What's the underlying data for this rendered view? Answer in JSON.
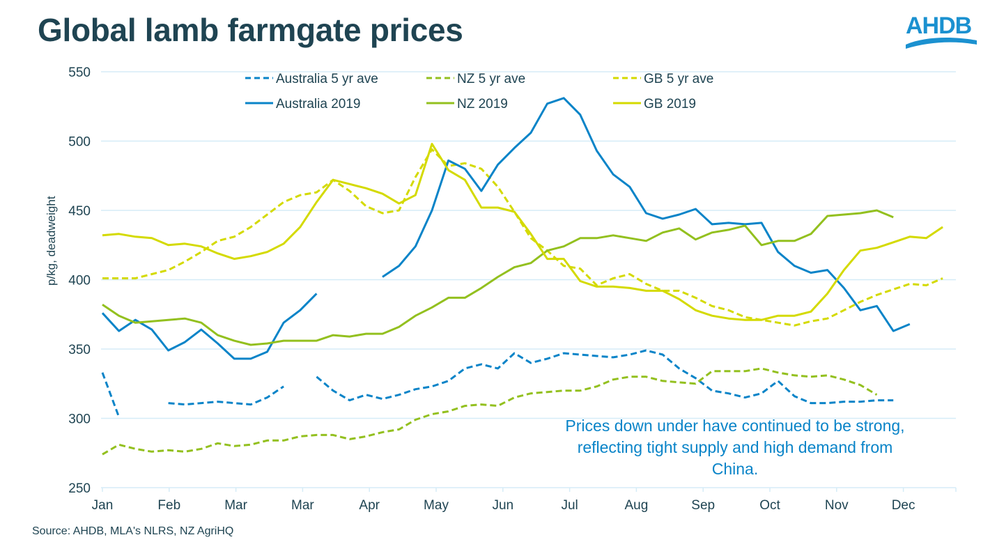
{
  "header": {
    "title": "Global lamb farmgate prices",
    "logo_text": "AHDB"
  },
  "source": "Source: AHDB, MLA's NLRS, NZ AgriHQ",
  "annotation": "Prices down under have continued to be strong, reflecting tight supply and high demand from China.",
  "colors": {
    "australia": "#0a84c8",
    "nz": "#93c01f",
    "gb": "#d4da00",
    "grid": "#d5ecf7",
    "text": "#1f4452"
  },
  "chart_data": {
    "type": "line",
    "title": "Global lamb farmgate prices",
    "xlabel": "",
    "ylabel": "p/kg, deadweight",
    "ylim": [
      250,
      550
    ],
    "yticks": [
      250,
      300,
      350,
      400,
      450,
      500,
      550
    ],
    "x_tick_labels": [
      "Jan",
      "Feb",
      "Mar",
      "Mar",
      "Apr",
      "May",
      "Jun",
      "Jul",
      "Aug",
      "Sep",
      "Oct",
      "Nov",
      "Dec"
    ],
    "x_unit": "week index (0-51)",
    "grid": true,
    "legend": "top-center",
    "series": [
      {
        "name": "Australia 5 yr ave",
        "style": "dashed",
        "color_key": "australia",
        "values": [
          333,
          301,
          null,
          null,
          311,
          310,
          311,
          312,
          311,
          310,
          315,
          323,
          null,
          330,
          320,
          313,
          317,
          314,
          317,
          321,
          323,
          327,
          336,
          339,
          336,
          347,
          340,
          343,
          347,
          346,
          345,
          344,
          346,
          349,
          346,
          336,
          329,
          320,
          318,
          315,
          318,
          327,
          316,
          311,
          311,
          312,
          312,
          313,
          313,
          null,
          null,
          null
        ]
      },
      {
        "name": "NZ 5 yr ave",
        "style": "dashed",
        "color_key": "nz",
        "values": [
          274,
          281,
          278,
          276,
          277,
          276,
          278,
          282,
          280,
          281,
          284,
          284,
          287,
          288,
          288,
          285,
          287,
          290,
          292,
          299,
          303,
          305,
          309,
          310,
          309,
          315,
          318,
          319,
          320,
          320,
          323,
          328,
          330,
          330,
          327,
          326,
          325,
          334,
          334,
          334,
          336,
          333,
          331,
          330,
          331,
          328,
          324,
          317,
          null,
          null,
          null,
          null
        ]
      },
      {
        "name": "GB 5 yr ave",
        "style": "dashed",
        "color_key": "gb",
        "values": [
          401,
          401,
          401,
          404,
          407,
          413,
          420,
          428,
          431,
          438,
          447,
          456,
          461,
          463,
          472,
          464,
          453,
          448,
          450,
          474,
          494,
          482,
          484,
          480,
          467,
          449,
          430,
          421,
          410,
          408,
          396,
          401,
          404,
          397,
          392,
          392,
          387,
          381,
          378,
          373,
          371,
          369,
          367,
          370,
          372,
          378,
          384,
          389,
          393,
          397,
          396,
          401
        ]
      },
      {
        "name": "Australia 2019",
        "style": "solid",
        "color_key": "australia",
        "values": [
          376,
          363,
          371,
          364,
          349,
          355,
          364,
          354,
          343,
          343,
          348,
          369,
          378,
          390,
          null,
          null,
          null,
          402,
          410,
          424,
          450,
          486,
          480,
          464,
          483,
          495,
          506,
          527,
          531,
          519,
          493,
          476,
          467,
          448,
          444,
          447,
          451,
          440,
          441,
          440,
          441,
          420,
          410,
          405,
          407,
          394,
          378,
          381,
          363,
          368,
          null,
          null
        ]
      },
      {
        "name": "NZ 2019",
        "style": "solid",
        "color_key": "nz",
        "values": [
          382,
          374,
          369,
          370,
          371,
          372,
          369,
          360,
          356,
          353,
          354,
          356,
          356,
          356,
          360,
          359,
          361,
          361,
          366,
          374,
          380,
          387,
          387,
          394,
          402,
          409,
          412,
          421,
          424,
          430,
          430,
          432,
          430,
          428,
          434,
          437,
          429,
          434,
          436,
          439,
          425,
          428,
          428,
          433,
          446,
          447,
          448,
          450,
          445,
          null,
          null,
          null
        ]
      },
      {
        "name": "GB 2019",
        "style": "solid",
        "color_key": "gb",
        "values": [
          432,
          433,
          431,
          430,
          425,
          426,
          424,
          419,
          415,
          417,
          420,
          426,
          438,
          456,
          472,
          469,
          466,
          462,
          455,
          461,
          498,
          479,
          472,
          452,
          452,
          449,
          433,
          415,
          415,
          399,
          395,
          395,
          394,
          392,
          392,
          386,
          378,
          374,
          372,
          371,
          371,
          374,
          374,
          377,
          390,
          407,
          421,
          423,
          427,
          431,
          430,
          438
        ]
      }
    ]
  }
}
